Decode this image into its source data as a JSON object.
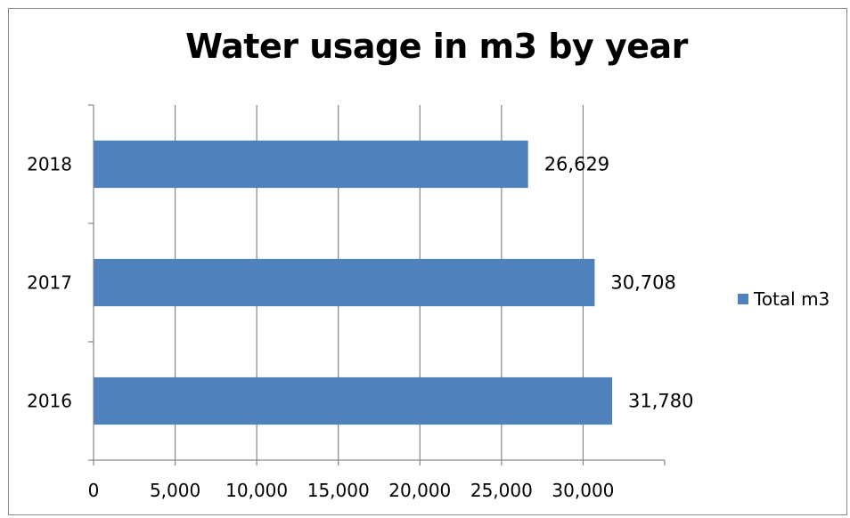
{
  "chart_data": {
    "type": "bar",
    "orientation": "horizontal",
    "title": "Water usage in m3 by year",
    "categories": [
      "2016",
      "2017",
      "2018"
    ],
    "series": [
      {
        "name": "Total m3",
        "values": [
          31780,
          30708,
          26629
        ],
        "value_labels": [
          "31,780",
          "30,708",
          "26,629"
        ]
      }
    ],
    "x_ticks": [
      "0",
      "5,000",
      "10,000",
      "15,000",
      "20,000",
      "25,000",
      "30,000"
    ],
    "xlim": [
      0,
      35000
    ],
    "grid": true,
    "legend_position": "right",
    "colors": {
      "bar": "#4f81bd",
      "grid": "#868686",
      "axis": "#868686"
    }
  }
}
